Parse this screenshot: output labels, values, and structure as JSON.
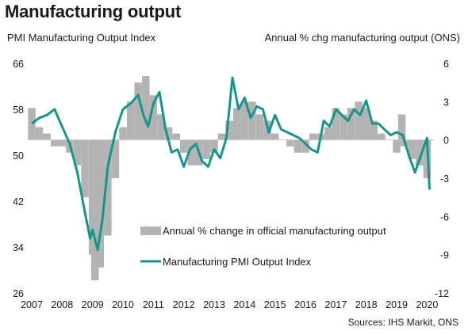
{
  "chart_data": {
    "type": "bar+line",
    "title": "Manufacturing output",
    "left_axis_label": "PMI Manufacturing  Output Index",
    "right_axis_label": "Annual  % chg manufacturing  output (ONS)",
    "left_ylim": [
      26,
      66
    ],
    "left_ticks": [
      "66",
      "58",
      "50",
      "42",
      "34",
      "26"
    ],
    "right_ylim": [
      -12,
      6
    ],
    "right_ticks": [
      "6",
      "3",
      "0",
      "-3",
      "-6",
      "-9",
      "-12"
    ],
    "x_ticks": [
      "2007",
      "2008",
      "2009",
      "2010",
      "2011",
      "2012",
      "2013",
      "2014",
      "2015",
      "2016",
      "2017",
      "2018",
      "2019",
      "2020"
    ],
    "legend": {
      "position": "bottom-center"
    },
    "series": [
      {
        "name": "Annual % change in official manufacturing output",
        "kind": "bar",
        "axis": "right",
        "color": "#b3b3b3",
        "points": [
          [
            2007.0,
            2.5
          ],
          [
            2007.25,
            1.0
          ],
          [
            2007.5,
            0.5
          ],
          [
            2007.75,
            -0.5
          ],
          [
            2008.0,
            -0.5
          ],
          [
            2008.25,
            -1.0
          ],
          [
            2008.5,
            -2.0
          ],
          [
            2008.75,
            -4.5
          ],
          [
            2009.0,
            -9.0
          ],
          [
            2009.08,
            -11.0
          ],
          [
            2009.25,
            -10.0
          ],
          [
            2009.5,
            -7.5
          ],
          [
            2009.75,
            -3.0
          ],
          [
            2010.0,
            1.0
          ],
          [
            2010.25,
            3.0
          ],
          [
            2010.5,
            4.5
          ],
          [
            2010.75,
            5.0
          ],
          [
            2011.0,
            3.5
          ],
          [
            2011.25,
            2.0
          ],
          [
            2011.5,
            1.0
          ],
          [
            2011.75,
            0.5
          ],
          [
            2012.0,
            -1.0
          ],
          [
            2012.25,
            -2.0
          ],
          [
            2012.5,
            -2.0
          ],
          [
            2012.75,
            -1.5
          ],
          [
            2013.0,
            -1.0
          ],
          [
            2013.25,
            0.5
          ],
          [
            2013.5,
            1.5
          ],
          [
            2013.75,
            2.5
          ],
          [
            2014.0,
            3.0
          ],
          [
            2014.25,
            3.0
          ],
          [
            2014.5,
            2.0
          ],
          [
            2014.75,
            1.5
          ],
          [
            2015.0,
            0.5
          ],
          [
            2015.25,
            0.0
          ],
          [
            2015.5,
            -0.5
          ],
          [
            2015.75,
            -1.0
          ],
          [
            2016.0,
            -1.0
          ],
          [
            2016.25,
            0.5
          ],
          [
            2016.5,
            0.5
          ],
          [
            2016.75,
            1.0
          ],
          [
            2017.0,
            2.5
          ],
          [
            2017.25,
            2.0
          ],
          [
            2017.5,
            2.5
          ],
          [
            2017.75,
            3.0
          ],
          [
            2018.0,
            2.5
          ],
          [
            2018.25,
            1.5
          ],
          [
            2018.5,
            0.5
          ],
          [
            2018.75,
            0.0
          ],
          [
            2019.0,
            -1.0
          ],
          [
            2019.17,
            2.0
          ],
          [
            2019.25,
            -0.5
          ],
          [
            2019.5,
            -1.5
          ],
          [
            2019.75,
            -2.0
          ],
          [
            2020.0,
            -3.0
          ]
        ]
      },
      {
        "name": "Manufacturing PMI Output Index",
        "kind": "line",
        "axis": "left",
        "color": "#16968a",
        "points": [
          [
            2007.0,
            55.5
          ],
          [
            2007.25,
            56.5
          ],
          [
            2007.5,
            57.0
          ],
          [
            2007.75,
            58.0
          ],
          [
            2008.0,
            55.0
          ],
          [
            2008.25,
            52.0
          ],
          [
            2008.5,
            47.0
          ],
          [
            2008.75,
            40.0
          ],
          [
            2008.92,
            35.5
          ],
          [
            2009.0,
            37.0
          ],
          [
            2009.17,
            33.5
          ],
          [
            2009.33,
            39.0
          ],
          [
            2009.5,
            48.0
          ],
          [
            2009.75,
            54.0
          ],
          [
            2010.0,
            58.0
          ],
          [
            2010.25,
            59.0
          ],
          [
            2010.5,
            60.5
          ],
          [
            2010.67,
            57.0
          ],
          [
            2010.83,
            55.0
          ],
          [
            2011.0,
            59.0
          ],
          [
            2011.2,
            61.0
          ],
          [
            2011.4,
            54.5
          ],
          [
            2011.6,
            50.5
          ],
          [
            2011.8,
            51.0
          ],
          [
            2012.0,
            48.0
          ],
          [
            2012.2,
            51.0
          ],
          [
            2012.4,
            52.0
          ],
          [
            2012.6,
            49.0
          ],
          [
            2012.8,
            48.0
          ],
          [
            2013.0,
            51.0
          ],
          [
            2013.2,
            49.5
          ],
          [
            2013.4,
            53.0
          ],
          [
            2013.6,
            63.5
          ],
          [
            2013.8,
            58.0
          ],
          [
            2014.0,
            60.0
          ],
          [
            2014.2,
            56.5
          ],
          [
            2014.4,
            58.5
          ],
          [
            2014.6,
            58.0
          ],
          [
            2014.8,
            54.0
          ],
          [
            2015.0,
            57.0
          ],
          [
            2015.2,
            54.5
          ],
          [
            2015.4,
            54.0
          ],
          [
            2015.6,
            53.5
          ],
          [
            2015.8,
            53.0
          ],
          [
            2016.0,
            52.0
          ],
          [
            2016.2,
            51.0
          ],
          [
            2016.4,
            50.5
          ],
          [
            2016.6,
            56.0
          ],
          [
            2016.8,
            55.0
          ],
          [
            2017.0,
            58.0
          ],
          [
            2017.2,
            57.0
          ],
          [
            2017.4,
            56.0
          ],
          [
            2017.6,
            58.0
          ],
          [
            2017.8,
            57.0
          ],
          [
            2018.0,
            59.5
          ],
          [
            2018.2,
            55.5
          ],
          [
            2018.4,
            55.5
          ],
          [
            2018.6,
            54.5
          ],
          [
            2018.8,
            53.5
          ],
          [
            2019.0,
            54.0
          ],
          [
            2019.2,
            53.5
          ],
          [
            2019.4,
            50.0
          ],
          [
            2019.6,
            47.0
          ],
          [
            2019.8,
            50.0
          ],
          [
            2020.0,
            53.0
          ],
          [
            2020.08,
            44.0
          ]
        ]
      }
    ]
  },
  "source": "Sources: IHS Markit, ONS"
}
